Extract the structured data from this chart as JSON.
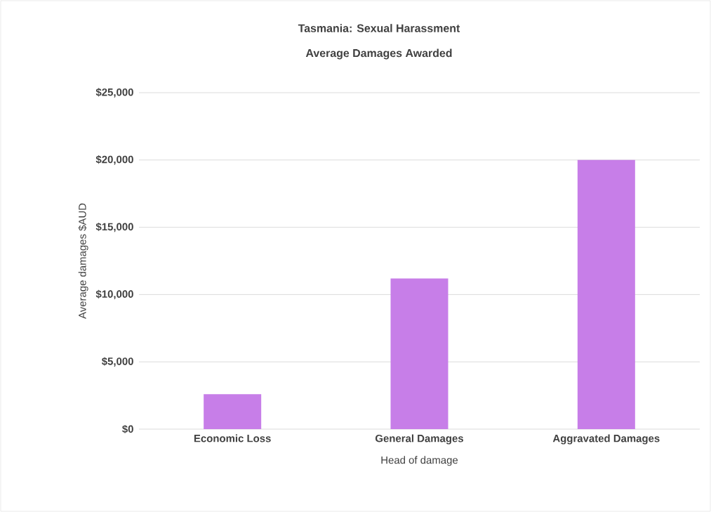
{
  "chart_data": {
    "type": "bar",
    "title": "Tasmania: Sexual Harassment",
    "subtitle": "Average Damages Awarded",
    "xlabel": "Head of damage",
    "ylabel": "Average damages $AUD",
    "categories": [
      "Economic Loss",
      "General Damages",
      "Aggravated Damages"
    ],
    "values": [
      2600,
      11200,
      20000
    ],
    "color": "#c77ee8",
    "ylim": [
      0,
      25000
    ],
    "yticks": [
      {
        "value": 0,
        "label": "$0"
      },
      {
        "value": 5000,
        "label": "$5,000"
      },
      {
        "value": 10000,
        "label": "$10,000"
      },
      {
        "value": 15000,
        "label": "$15,000"
      },
      {
        "value": 20000,
        "label": "$20,000"
      },
      {
        "value": 25000,
        "label": "$25,000"
      }
    ],
    "grid": "y"
  }
}
